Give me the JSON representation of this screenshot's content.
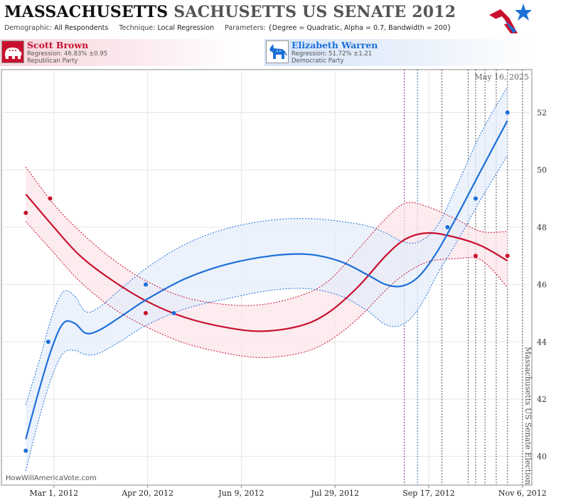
{
  "header": {
    "title_state": "MASSACHUSETTS",
    "title_race": "SACHUSETTS US SENATE 2012",
    "demographic_label": "Demographic:",
    "demographic_value": "All Respondents",
    "technique_label": "Technique:",
    "technique_value": "Local Regression",
    "parameters_label": "Parameters:",
    "parameters_value": "{Degree = Quadratic, Alpha = 0.7, Bandwidth = 200}",
    "logo_icon": "star-flag-logo-icon"
  },
  "candidates": {
    "rep": {
      "name": "Scott Brown",
      "regression": "Regression: 46.83% ±0.95",
      "party": "Republican Party",
      "icon": "elephant-icon",
      "color": "#c8102e"
    },
    "dem": {
      "name": "Elizabeth Warren",
      "regression": "Regression: 51.72% ±1.21",
      "party": "Democratic Party",
      "icon": "donkey-icon",
      "color": "#1d6fd8"
    }
  },
  "credit": "HowWillAmericaVote.com",
  "chart_data": {
    "type": "line",
    "date_label": "May 16, 2025",
    "event_label": "Massachusetts US Senate Election",
    "x_range": [
      "2012-02-02",
      "2012-11-11"
    ],
    "y_range": [
      39.0,
      53.5
    ],
    "y_ticks": [
      40,
      42,
      44,
      46,
      48,
      50,
      52
    ],
    "x_ticks": [
      {
        "date": "2012-03-01",
        "label": "Mar 1, 2012"
      },
      {
        "date": "2012-04-20",
        "label": "Apr 20, 2012"
      },
      {
        "date": "2012-06-09",
        "label": "Jun 9, 2012"
      },
      {
        "date": "2012-07-29",
        "label": "Jul 29, 2012"
      },
      {
        "date": "2012-09-17",
        "label": "Sep 17, 2012"
      },
      {
        "date": "2012-11-06",
        "label": "Nov 6, 2012"
      }
    ],
    "grid": true,
    "vertical_markers": [
      {
        "date": "2012-09-04",
        "color": "#7a2a8a"
      },
      {
        "date": "2012-09-11",
        "color": "#2a6fa8"
      },
      {
        "date": "2012-09-24",
        "color": "#555555"
      },
      {
        "date": "2012-10-08",
        "color": "#555555"
      },
      {
        "date": "2012-10-12",
        "color": "#555555"
      },
      {
        "date": "2012-10-17",
        "color": "#555555"
      },
      {
        "date": "2012-10-23",
        "color": "#555555"
      },
      {
        "date": "2012-10-29",
        "color": "#555555"
      },
      {
        "date": "2012-11-06",
        "color": "#555555"
      }
    ],
    "series": [
      {
        "name": "Scott Brown",
        "color": "#c8102e",
        "points": [
          {
            "date": "2012-02-15",
            "value": 48.5
          },
          {
            "date": "2012-02-28",
            "value": 49.0
          },
          {
            "date": "2012-04-19",
            "value": 45.0
          },
          {
            "date": "2012-10-12",
            "value": 47.0
          },
          {
            "date": "2012-10-29",
            "value": 47.0
          }
        ],
        "fit": [
          {
            "date": "2012-02-15",
            "value": 49.15
          },
          {
            "date": "2012-03-01",
            "value": 48.0
          },
          {
            "date": "2012-03-15",
            "value": 47.0
          },
          {
            "date": "2012-04-01",
            "value": 46.15
          },
          {
            "date": "2012-04-20",
            "value": 45.4
          },
          {
            "date": "2012-05-10",
            "value": 44.85
          },
          {
            "date": "2012-06-01",
            "value": 44.5
          },
          {
            "date": "2012-06-20",
            "value": 44.37
          },
          {
            "date": "2012-07-10",
            "value": 44.55
          },
          {
            "date": "2012-07-25",
            "value": 45.0
          },
          {
            "date": "2012-08-10",
            "value": 45.9
          },
          {
            "date": "2012-08-25",
            "value": 47.0
          },
          {
            "date": "2012-09-05",
            "value": 47.6
          },
          {
            "date": "2012-09-17",
            "value": 47.8
          },
          {
            "date": "2012-10-01",
            "value": 47.65
          },
          {
            "date": "2012-10-15",
            "value": 47.35
          },
          {
            "date": "2012-10-29",
            "value": 46.83
          }
        ],
        "upper": [
          {
            "date": "2012-02-15",
            "value": 50.1
          },
          {
            "date": "2012-03-01",
            "value": 48.8
          },
          {
            "date": "2012-03-15",
            "value": 47.85
          },
          {
            "date": "2012-04-01",
            "value": 46.9
          },
          {
            "date": "2012-04-20",
            "value": 46.1
          },
          {
            "date": "2012-05-10",
            "value": 45.55
          },
          {
            "date": "2012-06-01",
            "value": 45.3
          },
          {
            "date": "2012-06-20",
            "value": 45.3
          },
          {
            "date": "2012-07-10",
            "value": 45.6
          },
          {
            "date": "2012-07-25",
            "value": 46.1
          },
          {
            "date": "2012-08-10",
            "value": 47.2
          },
          {
            "date": "2012-08-25",
            "value": 48.3
          },
          {
            "date": "2012-09-05",
            "value": 48.85
          },
          {
            "date": "2012-09-17",
            "value": 48.7
          },
          {
            "date": "2012-10-01",
            "value": 48.3
          },
          {
            "date": "2012-10-15",
            "value": 47.85
          },
          {
            "date": "2012-10-29",
            "value": 47.85
          }
        ],
        "lower": [
          {
            "date": "2012-02-15",
            "value": 48.2
          },
          {
            "date": "2012-03-01",
            "value": 47.1
          },
          {
            "date": "2012-03-15",
            "value": 46.1
          },
          {
            "date": "2012-04-01",
            "value": 45.2
          },
          {
            "date": "2012-04-20",
            "value": 44.5
          },
          {
            "date": "2012-05-10",
            "value": 43.95
          },
          {
            "date": "2012-06-01",
            "value": 43.6
          },
          {
            "date": "2012-06-20",
            "value": 43.45
          },
          {
            "date": "2012-07-10",
            "value": 43.6
          },
          {
            "date": "2012-07-25",
            "value": 44.0
          },
          {
            "date": "2012-08-10",
            "value": 44.8
          },
          {
            "date": "2012-08-25",
            "value": 45.8
          },
          {
            "date": "2012-09-05",
            "value": 46.4
          },
          {
            "date": "2012-09-17",
            "value": 46.8
          },
          {
            "date": "2012-10-01",
            "value": 46.9
          },
          {
            "date": "2012-10-15",
            "value": 46.85
          },
          {
            "date": "2012-10-29",
            "value": 45.9
          }
        ]
      },
      {
        "name": "Elizabeth Warren",
        "color": "#1d6fd8",
        "points": [
          {
            "date": "2012-02-15",
            "value": 40.2
          },
          {
            "date": "2012-02-27",
            "value": 44.0
          },
          {
            "date": "2012-04-19",
            "value": 46.0
          },
          {
            "date": "2012-05-04",
            "value": 45.0
          },
          {
            "date": "2012-09-27",
            "value": 48.0
          },
          {
            "date": "2012-10-12",
            "value": 49.0
          },
          {
            "date": "2012-10-29",
            "value": 52.0
          }
        ],
        "fit": [
          {
            "date": "2012-02-15",
            "value": 40.6
          },
          {
            "date": "2012-02-22",
            "value": 42.3
          },
          {
            "date": "2012-02-29",
            "value": 43.8
          },
          {
            "date": "2012-03-06",
            "value": 44.65
          },
          {
            "date": "2012-03-12",
            "value": 44.65
          },
          {
            "date": "2012-03-18",
            "value": 44.3
          },
          {
            "date": "2012-03-25",
            "value": 44.4
          },
          {
            "date": "2012-04-05",
            "value": 44.85
          },
          {
            "date": "2012-04-20",
            "value": 45.5
          },
          {
            "date": "2012-05-10",
            "value": 46.2
          },
          {
            "date": "2012-06-01",
            "value": 46.7
          },
          {
            "date": "2012-06-25",
            "value": 47.0
          },
          {
            "date": "2012-07-15",
            "value": 47.05
          },
          {
            "date": "2012-08-01",
            "value": 46.8
          },
          {
            "date": "2012-08-15",
            "value": 46.35
          },
          {
            "date": "2012-08-25",
            "value": 46.0
          },
          {
            "date": "2012-09-03",
            "value": 45.95
          },
          {
            "date": "2012-09-12",
            "value": 46.3
          },
          {
            "date": "2012-09-22",
            "value": 47.2
          },
          {
            "date": "2012-10-03",
            "value": 48.5
          },
          {
            "date": "2012-10-15",
            "value": 50.0
          },
          {
            "date": "2012-10-29",
            "value": 51.72
          }
        ],
        "upper": [
          {
            "date": "2012-02-15",
            "value": 41.8
          },
          {
            "date": "2012-02-22",
            "value": 43.3
          },
          {
            "date": "2012-02-29",
            "value": 44.9
          },
          {
            "date": "2012-03-06",
            "value": 45.75
          },
          {
            "date": "2012-03-12",
            "value": 45.6
          },
          {
            "date": "2012-03-18",
            "value": 45.05
          },
          {
            "date": "2012-03-25",
            "value": 45.2
          },
          {
            "date": "2012-04-05",
            "value": 45.8
          },
          {
            "date": "2012-04-20",
            "value": 46.6
          },
          {
            "date": "2012-05-10",
            "value": 47.4
          },
          {
            "date": "2012-06-01",
            "value": 47.95
          },
          {
            "date": "2012-06-25",
            "value": 48.25
          },
          {
            "date": "2012-07-15",
            "value": 48.3
          },
          {
            "date": "2012-08-01",
            "value": 48.2
          },
          {
            "date": "2012-08-15",
            "value": 48.05
          },
          {
            "date": "2012-08-25",
            "value": 47.8
          },
          {
            "date": "2012-09-03",
            "value": 47.5
          },
          {
            "date": "2012-09-12",
            "value": 47.5
          },
          {
            "date": "2012-09-22",
            "value": 48.1
          },
          {
            "date": "2012-10-03",
            "value": 49.6
          },
          {
            "date": "2012-10-15",
            "value": 51.3
          },
          {
            "date": "2012-10-29",
            "value": 52.9
          }
        ],
        "lower": [
          {
            "date": "2012-02-15",
            "value": 39.5
          },
          {
            "date": "2012-02-22",
            "value": 41.3
          },
          {
            "date": "2012-02-29",
            "value": 42.8
          },
          {
            "date": "2012-03-06",
            "value": 43.6
          },
          {
            "date": "2012-03-12",
            "value": 43.7
          },
          {
            "date": "2012-03-18",
            "value": 43.55
          },
          {
            "date": "2012-03-25",
            "value": 43.6
          },
          {
            "date": "2012-04-05",
            "value": 44.0
          },
          {
            "date": "2012-04-20",
            "value": 44.6
          },
          {
            "date": "2012-05-10",
            "value": 45.15
          },
          {
            "date": "2012-06-01",
            "value": 45.5
          },
          {
            "date": "2012-06-25",
            "value": 45.8
          },
          {
            "date": "2012-07-15",
            "value": 45.85
          },
          {
            "date": "2012-08-01",
            "value": 45.6
          },
          {
            "date": "2012-08-15",
            "value": 45.1
          },
          {
            "date": "2012-08-25",
            "value": 44.6
          },
          {
            "date": "2012-09-03",
            "value": 44.6
          },
          {
            "date": "2012-09-12",
            "value": 45.2
          },
          {
            "date": "2012-09-22",
            "value": 46.4
          },
          {
            "date": "2012-10-03",
            "value": 47.6
          },
          {
            "date": "2012-10-15",
            "value": 49.0
          },
          {
            "date": "2012-10-29",
            "value": 50.5
          }
        ]
      }
    ]
  }
}
